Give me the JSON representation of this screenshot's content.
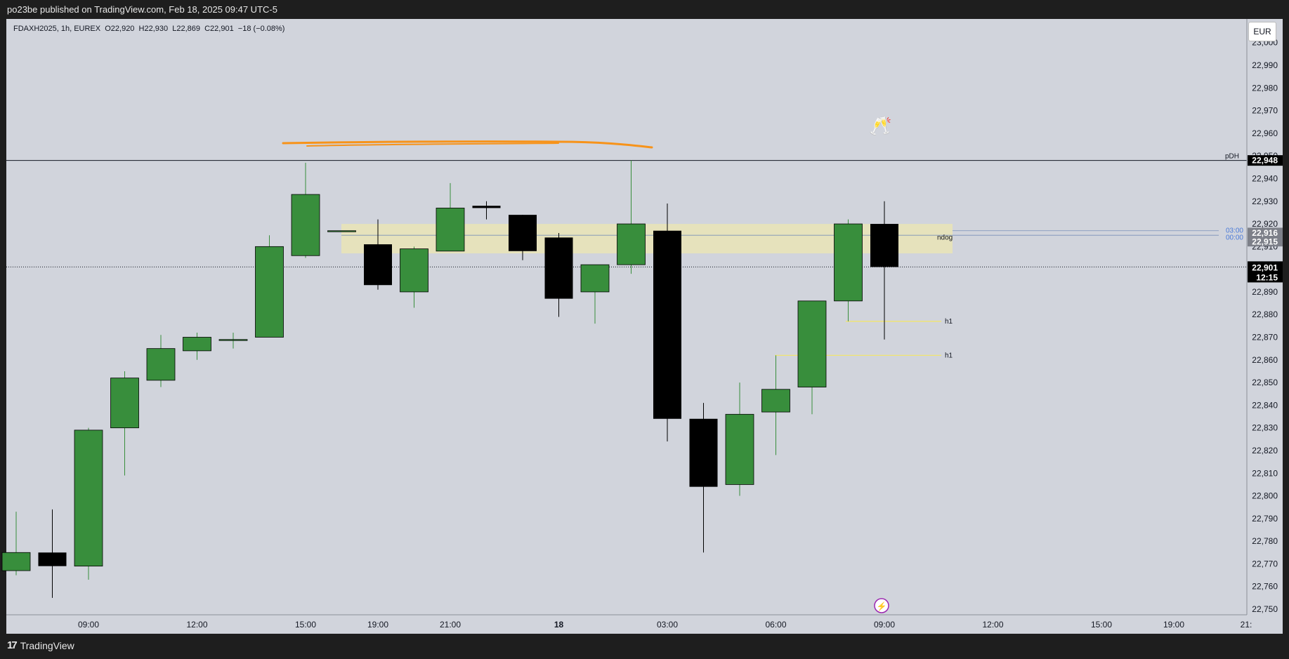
{
  "header": {
    "published": "po23be published on TradingView.com, Feb 18, 2025 09:47 UTC-5"
  },
  "legend": {
    "text": "FDAXH2025, 1h, EUREX  O22,920  H22,930  L22,869  C22,901  −18 (−0.08%)"
  },
  "currency_button": "EUR",
  "footer": {
    "brand": "TradingView",
    "logo_icon": "tradingview-logo-icon"
  },
  "price_labels": {
    "pdh_price": "22,948",
    "ndog_price": "22,916",
    "ndog_price2": "22,915",
    "last_price": "22,901",
    "countdown": "12:15",
    "time_0300": "03:00",
    "time_0000": "00:00"
  },
  "colors": {
    "up": "#388e3c",
    "down": "#000000",
    "wick_up": "#388e3c",
    "wick_down": "#000000",
    "orange": "#f7931a",
    "zone": "#e8e3b8",
    "h1": "#f5e663"
  },
  "chart_data": {
    "type": "candlestick",
    "symbol": "FDAXH2025",
    "interval": "1h",
    "exchange": "EUREX",
    "ylim": [
      22745,
      23005
    ],
    "y_ticks": [
      22750,
      22760,
      22770,
      22780,
      22790,
      22800,
      22810,
      22820,
      22830,
      22840,
      22850,
      22860,
      22870,
      22880,
      22890,
      22900,
      22910,
      22920,
      22930,
      22940,
      22950,
      22960,
      22970,
      22980,
      22990,
      23000
    ],
    "x_ticks": [
      {
        "label": "09:00",
        "index": 2
      },
      {
        "label": "12:00",
        "index": 5
      },
      {
        "label": "15:00",
        "index": 8
      },
      {
        "label": "19:00",
        "index": 10
      },
      {
        "label": "21:00",
        "index": 12
      },
      {
        "label": "18",
        "index": 15
      },
      {
        "label": "03:00",
        "index": 18
      },
      {
        "label": "06:00",
        "index": 21
      },
      {
        "label": "09:00",
        "index": 24
      },
      {
        "label": "12:00",
        "index": 27
      },
      {
        "label": "15:00",
        "index": 30
      },
      {
        "label": "19:00",
        "index": 32
      },
      {
        "label": "21:",
        "index": 34
      }
    ],
    "candles": [
      {
        "o": 22767,
        "h": 22793,
        "l": 22765,
        "c": 22775
      },
      {
        "o": 22775,
        "h": 22794,
        "l": 22755,
        "c": 22769
      },
      {
        "o": 22769,
        "h": 22830,
        "l": 22763,
        "c": 22829
      },
      {
        "o": 22830,
        "h": 22855,
        "l": 22809,
        "c": 22852
      },
      {
        "o": 22851,
        "h": 22871,
        "l": 22848,
        "c": 22865
      },
      {
        "o": 22864,
        "h": 22872,
        "l": 22860,
        "c": 22870
      },
      {
        "o": 22869,
        "h": 22872,
        "l": 22865,
        "c": 22869
      },
      {
        "o": 22870,
        "h": 22915,
        "l": 22870,
        "c": 22910
      },
      {
        "o": 22906,
        "h": 22947,
        "l": 22905,
        "c": 22933
      },
      {
        "o": 22917,
        "h": 22917,
        "l": 22917,
        "c": 22917
      },
      {
        "o": 22911,
        "h": 22922,
        "l": 22891,
        "c": 22893
      },
      {
        "o": 22890,
        "h": 22910,
        "l": 22883,
        "c": 22909
      },
      {
        "o": 22908,
        "h": 22938,
        "l": 22908,
        "c": 22927
      },
      {
        "o": 22928,
        "h": 22930,
        "l": 22922,
        "c": 22927
      },
      {
        "o": 22924,
        "h": 22924,
        "l": 22904,
        "c": 22908
      },
      {
        "o": 22914,
        "h": 22916,
        "l": 22879,
        "c": 22887
      },
      {
        "o": 22890,
        "h": 22902,
        "l": 22876,
        "c": 22902
      },
      {
        "o": 22902,
        "h": 22948,
        "l": 22898,
        "c": 22920
      },
      {
        "o": 22917,
        "h": 22929,
        "l": 22824,
        "c": 22834
      },
      {
        "o": 22834,
        "h": 22841,
        "l": 22775,
        "c": 22804
      },
      {
        "o": 22805,
        "h": 22850,
        "l": 22800,
        "c": 22836
      },
      {
        "o": 22837,
        "h": 22862,
        "l": 22818,
        "c": 22847
      },
      {
        "o": 22848,
        "h": 22885,
        "l": 22836,
        "c": 22886
      },
      {
        "o": 22886,
        "h": 22922,
        "l": 22877,
        "c": 22920
      },
      {
        "o": 22920,
        "h": 22930,
        "l": 22869,
        "c": 22901
      }
    ],
    "levels": [
      {
        "name": "pDH",
        "price": 22948
      },
      {
        "name": "ndog",
        "price": 22915
      },
      {
        "name": "h1",
        "price": 22877
      },
      {
        "name": "h1",
        "price": 22862
      }
    ],
    "last_price": 22901
  }
}
